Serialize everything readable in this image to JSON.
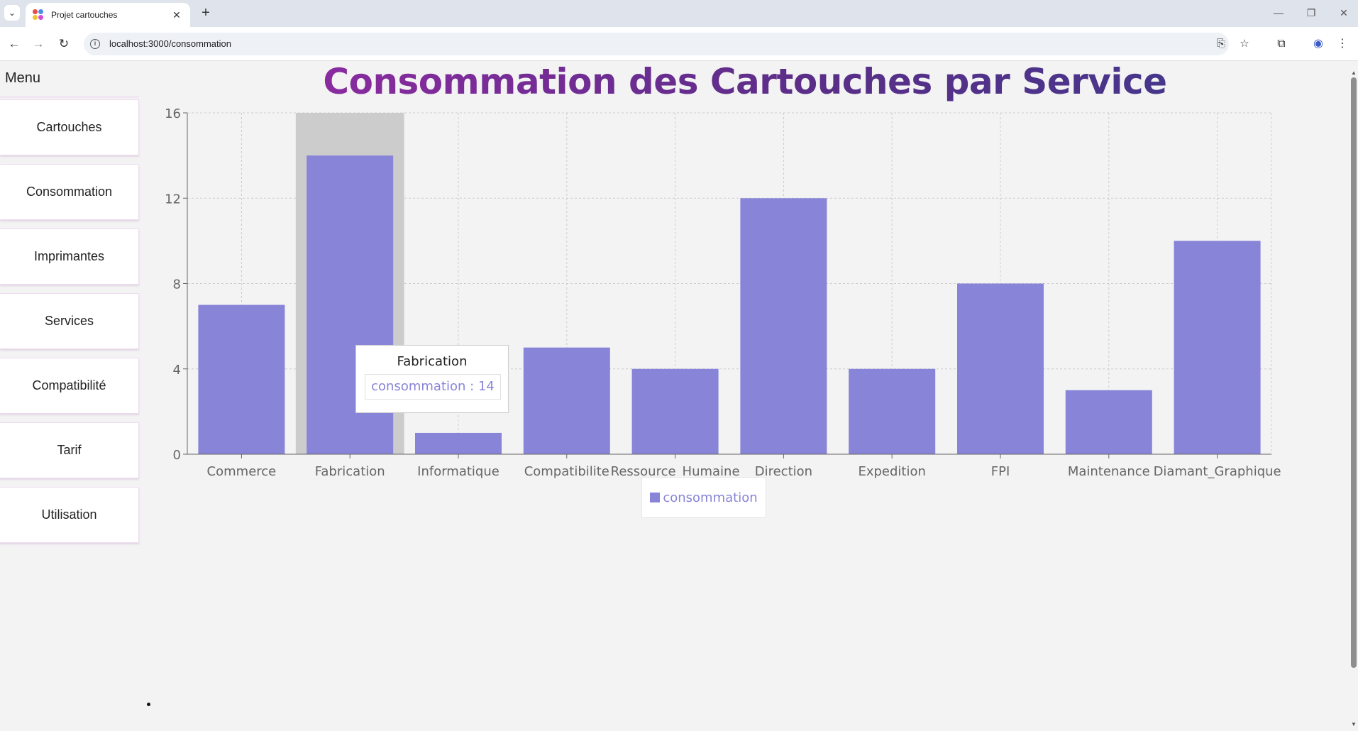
{
  "browser": {
    "tab_title": "Projet cartouches",
    "url": "localhost:3000/consommation",
    "icons": {
      "tab_search": "chevron-down-icon",
      "close_tab": "close-icon",
      "new_tab": "plus-icon",
      "back": "arrow-left-icon",
      "forward": "arrow-right-icon",
      "reload": "reload-icon",
      "site_info": "info-icon",
      "install": "install-icon",
      "bookmark": "star-icon",
      "extensions": "puzzle-icon",
      "profile": "profile-icon",
      "more": "more-vert-icon"
    },
    "glyphs": {
      "tab_search": "⌄",
      "close_tab": "✕",
      "new_tab": "+",
      "minimize": "—",
      "maximize": "❐",
      "close_window": "✕",
      "back": "←",
      "forward": "→",
      "reload": "↻",
      "site_info": "i",
      "install": "⎘",
      "bookmark": "☆",
      "extensions": "⧉",
      "profile": "◉",
      "more": "⋮"
    }
  },
  "sidebar": {
    "title": "Menu",
    "items": [
      {
        "label": "Cartouches"
      },
      {
        "label": "Consommation"
      },
      {
        "label": "Imprimantes"
      },
      {
        "label": "Services"
      },
      {
        "label": "Compatibilité"
      },
      {
        "label": "Tarif"
      },
      {
        "label": "Utilisation"
      }
    ]
  },
  "page": {
    "title": "Consommation des Cartouches par Service"
  },
  "chart_data": {
    "type": "bar",
    "title": "Consommation des Cartouches par Service",
    "categories": [
      "Commerce",
      "Fabrication",
      "Informatique",
      "Compatibilite",
      "Ressource_Humaine",
      "Direction",
      "Expedition",
      "FPI",
      "Maintenance",
      "Diamant_Graphique"
    ],
    "series": [
      {
        "name": "consommation",
        "values": [
          7,
          14,
          1,
          5,
          4,
          12,
          4,
          8,
          3,
          10
        ],
        "color": "#8884d8"
      }
    ],
    "ylim": [
      0,
      16
    ],
    "yticks": [
      0,
      4,
      8,
      12,
      16
    ],
    "grid": true,
    "legend": "bottom-center",
    "highlighted_category": "Fabrication",
    "tooltip": {
      "title": "Fabrication",
      "series_name": "consommation",
      "separator": " : ",
      "value": "14"
    }
  },
  "colors": {
    "bar": "#8884d8",
    "hover_band": "#cccccc",
    "title_gradient_start": "#9b2aa8",
    "title_gradient_end": "#3d3a8c"
  }
}
